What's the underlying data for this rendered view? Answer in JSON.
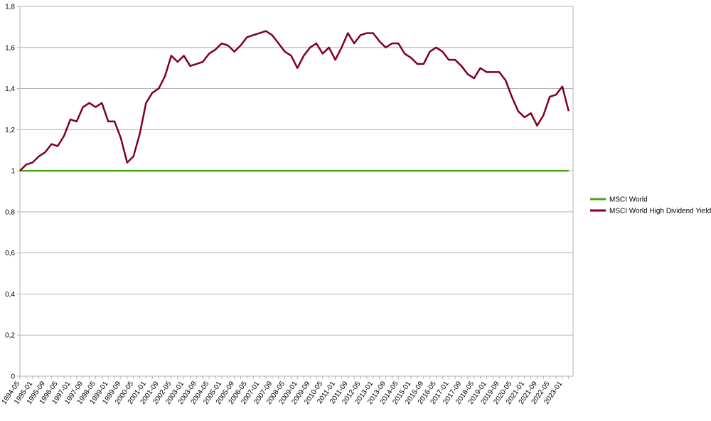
{
  "chart_data": {
    "type": "line",
    "categories": [
      "1994-05",
      null,
      "1995-01",
      null,
      "1995-09",
      null,
      "1996-05",
      null,
      "1997-01",
      null,
      "1997-09",
      null,
      "1998-05",
      null,
      "1999-01",
      null,
      "1999-09",
      null,
      "2000-05",
      null,
      "2001-01",
      null,
      "2001-09",
      null,
      "2002-05",
      null,
      "2003-01",
      null,
      "2003-09",
      null,
      "2004-05",
      null,
      "2005-01",
      null,
      "2005-09",
      null,
      "2006-05",
      null,
      "2007-01",
      null,
      "2007-09",
      null,
      "2008-05",
      null,
      "2009-01",
      null,
      "2009-09",
      null,
      "2010-05",
      null,
      "2011-01",
      null,
      "2011-09",
      null,
      "2012-05",
      null,
      "2013-01",
      null,
      "2013-09",
      null,
      "2014-05",
      null,
      "2015-01",
      null,
      "2015-09",
      null,
      "2016-05",
      null,
      "2017-01",
      null,
      "2017-09",
      null,
      "2018-05",
      null,
      "2019-01",
      null,
      "2019-09",
      null,
      "2020-05",
      null,
      "2021-01",
      null,
      "2021-09",
      null,
      "2022-05",
      null,
      "2023-01",
      null
    ],
    "series": [
      {
        "name": "MSCI World",
        "color": "#4ca11a",
        "values": [
          1,
          1,
          1,
          1,
          1,
          1,
          1,
          1,
          1,
          1,
          1,
          1,
          1,
          1,
          1,
          1,
          1,
          1,
          1,
          1,
          1,
          1,
          1,
          1,
          1,
          1,
          1,
          1,
          1,
          1,
          1,
          1,
          1,
          1,
          1,
          1,
          1,
          1,
          1,
          1,
          1,
          1,
          1,
          1,
          1,
          1,
          1,
          1,
          1,
          1,
          1,
          1,
          1,
          1,
          1,
          1,
          1,
          1,
          1,
          1,
          1,
          1,
          1,
          1,
          1,
          1,
          1,
          1,
          1,
          1,
          1,
          1,
          1,
          1,
          1,
          1,
          1,
          1,
          1,
          1,
          1,
          1,
          1,
          1,
          1,
          1,
          1,
          1
        ]
      },
      {
        "name": "MSCI World High Dividend Yield",
        "color": "#7e0021",
        "values": [
          1.0,
          1.03,
          1.04,
          1.07,
          1.09,
          1.13,
          1.12,
          1.17,
          1.25,
          1.24,
          1.31,
          1.33,
          1.31,
          1.33,
          1.24,
          1.24,
          1.16,
          1.04,
          1.07,
          1.18,
          1.33,
          1.38,
          1.4,
          1.46,
          1.56,
          1.53,
          1.56,
          1.51,
          1.52,
          1.53,
          1.57,
          1.59,
          1.62,
          1.61,
          1.58,
          1.61,
          1.65,
          1.66,
          1.67,
          1.68,
          1.66,
          1.62,
          1.58,
          1.56,
          1.5,
          1.56,
          1.6,
          1.62,
          1.57,
          1.6,
          1.54,
          1.6,
          1.67,
          1.62,
          1.66,
          1.67,
          1.67,
          1.63,
          1.6,
          1.62,
          1.62,
          1.57,
          1.55,
          1.52,
          1.52,
          1.58,
          1.6,
          1.58,
          1.54,
          1.54,
          1.51,
          1.47,
          1.45,
          1.5,
          1.48,
          1.48,
          1.48,
          1.44,
          1.36,
          1.29,
          1.26,
          1.28,
          1.22,
          1.27,
          1.36,
          1.37,
          1.41,
          1.29
        ]
      }
    ],
    "ylim": [
      0,
      1.8
    ],
    "yticks": [
      0,
      {
        "value": 0.2,
        "label": "0,2"
      },
      {
        "value": 0.4,
        "label": "0,4"
      },
      {
        "value": 0.6,
        "label": "0,6"
      },
      {
        "value": 0.8,
        "label": "0,8"
      },
      1,
      {
        "value": 1.2,
        "label": "1,2"
      },
      {
        "value": 1.4,
        "label": "1,4"
      },
      {
        "value": 1.6,
        "label": "1,6"
      },
      {
        "value": 1.8,
        "label": "1,8"
      }
    ],
    "grid": true,
    "legend": "right"
  }
}
